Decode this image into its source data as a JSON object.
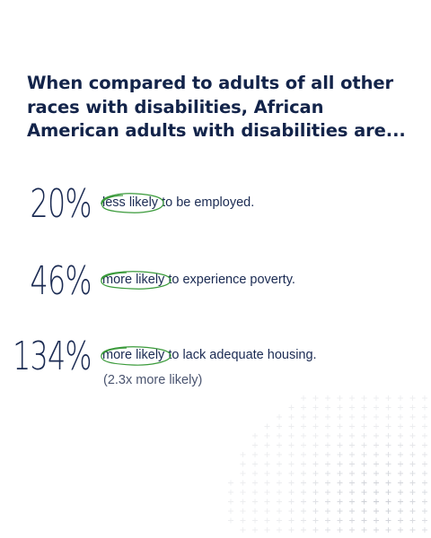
{
  "headline": {
    "part1": "When compared to ",
    "bold_word": "adults",
    "part2": " of all other races with disabilities, African American adults with disabilities are..."
  },
  "stats": [
    {
      "value": "20%",
      "highlight": "less likely",
      "rest": " to be employed.",
      "note": ""
    },
    {
      "value": "46%",
      "highlight": "more likely",
      "rest": " to experience poverty.",
      "note": ""
    },
    {
      "value": "134%",
      "highlight": "more likely",
      "rest": " to lack adequate housing.",
      "note": "(2.3x more likely)"
    }
  ],
  "colors": {
    "text": "#1a2a52",
    "highlight_circle": "#3a9a3a",
    "pattern": "#c9ccd3"
  },
  "icons": {
    "highlight": "hand-drawn-circle",
    "background": "plus-sign-pattern"
  }
}
